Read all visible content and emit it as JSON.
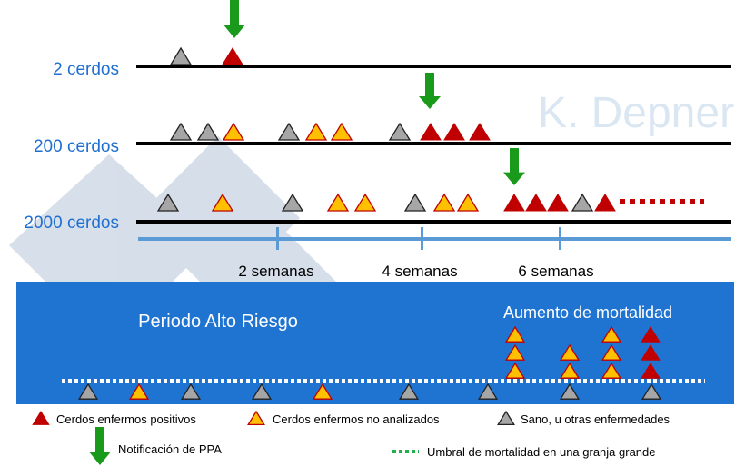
{
  "watermark": "K. Depner",
  "colors": {
    "positive": "#c00000",
    "untested": "#ffc000",
    "untested_border": "#c00000",
    "healthy": "#a6a6a6",
    "arrow": "#1a9a1a",
    "box": "#1f74d2",
    "row_label": "#1f6fd0",
    "axis": "#5b9bd5",
    "threshold": "#22b04a"
  },
  "rows": [
    {
      "label": "2 cerdos",
      "triangles": [
        "healthy",
        "positive"
      ]
    },
    {
      "label": "200 cerdos",
      "triangles": [
        "healthy",
        "healthy",
        "untested",
        "healthy",
        "untested",
        "untested",
        "healthy",
        "positive",
        "positive",
        "positive"
      ]
    },
    {
      "label": "2000 cerdos",
      "triangles": [
        "healthy",
        "untested",
        "healthy",
        "untested",
        "untested",
        "healthy",
        "untested",
        "untested",
        "positive",
        "positive",
        "positive",
        "healthy",
        "positive"
      ],
      "continues": true
    }
  ],
  "axis": {
    "ticks": [
      "2 semanas",
      "4 semanas",
      "6 semanas"
    ]
  },
  "box": {
    "left_label": "Periodo Alto Riesgo",
    "right_label": "Aumento de mortalidad",
    "baseline_triangles": [
      "healthy",
      "untested",
      "healthy",
      "healthy",
      "untested",
      "healthy",
      "healthy",
      "healthy",
      "healthy"
    ],
    "stacks": [
      [
        "untested",
        "untested",
        "untested"
      ],
      [
        "untested",
        "untested"
      ],
      [
        "untested",
        "untested",
        "untested"
      ],
      [
        "positive",
        "positive",
        "positive"
      ]
    ]
  },
  "legend": {
    "positive": "Cerdos enfermos positivos",
    "untested": "Cerdos enfermos no analizados",
    "healthy": "Sano, u otras enfermedades",
    "notification": "Notificación de PPA",
    "threshold": "Umbral de mortalidad en una granja grande"
  }
}
